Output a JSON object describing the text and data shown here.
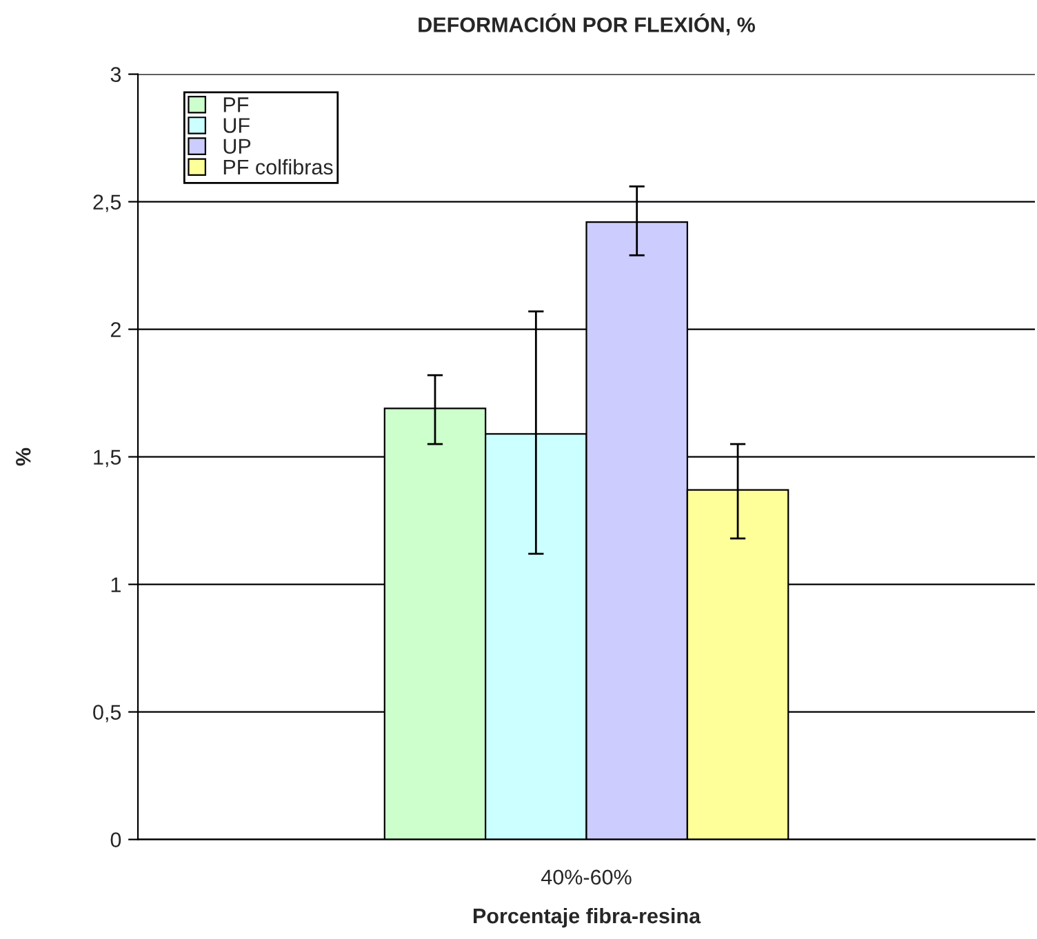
{
  "chart_data": {
    "type": "bar",
    "title": "DEFORMACIÓN POR FLEXIÓN, %",
    "xlabel": "Porcentaje fibra-resina",
    "ylabel": "%",
    "categories": [
      "40%-60%"
    ],
    "series": [
      {
        "name": "PF",
        "color": "#ccffcc",
        "values": [
          1.69
        ],
        "errors": [
          [
            1.55,
            1.82
          ]
        ]
      },
      {
        "name": "UF",
        "color": "#ccffff",
        "values": [
          1.59
        ],
        "errors": [
          [
            1.12,
            2.07
          ]
        ]
      },
      {
        "name": "UP",
        "color": "#ccccff",
        "values": [
          2.42
        ],
        "errors": [
          [
            2.29,
            2.56
          ]
        ]
      },
      {
        "name": "PF colfibras",
        "color": "#ffff99",
        "values": [
          1.37
        ],
        "errors": [
          [
            1.18,
            1.55
          ]
        ]
      }
    ],
    "ylim": [
      0,
      3
    ],
    "yticks": [
      0,
      {
        "value": 0.5,
        "label": "0,5"
      },
      1,
      {
        "value": 1.5,
        "label": "1,5"
      },
      2,
      {
        "value": 2.5,
        "label": "2,5"
      },
      3
    ],
    "grid": "y",
    "legend": "top left"
  }
}
